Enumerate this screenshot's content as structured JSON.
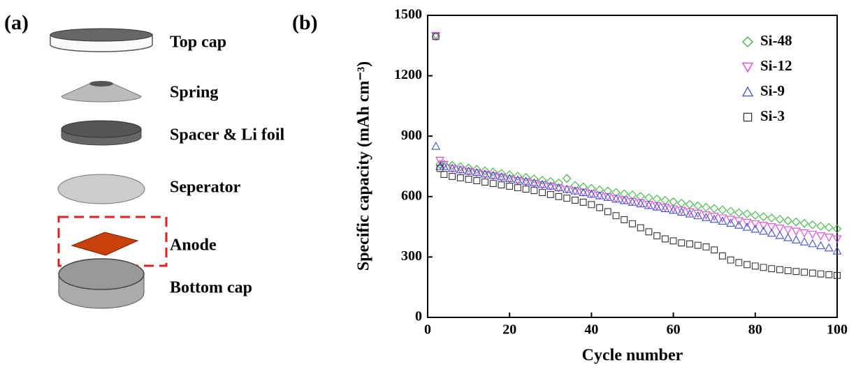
{
  "diagram": {
    "panel_label": "(a)",
    "parts": [
      "Top cap",
      "Spring",
      "Spacer & Li foil",
      "Seperator",
      "Anode",
      "Bottom cap"
    ]
  },
  "chart_data": {
    "type": "scatter",
    "panel_label": "(b)",
    "x_label": "Cycle number",
    "y_label": "Specific capacity (mAh cm⁻³)",
    "x": [
      2,
      3,
      4,
      6,
      8,
      10,
      12,
      14,
      16,
      18,
      20,
      22,
      24,
      26,
      28,
      30,
      32,
      34,
      36,
      38,
      40,
      42,
      44,
      46,
      48,
      50,
      52,
      54,
      56,
      58,
      60,
      62,
      64,
      66,
      68,
      70,
      72,
      74,
      76,
      78,
      80,
      82,
      84,
      86,
      88,
      90,
      92,
      94,
      96,
      98,
      100
    ],
    "series": [
      {
        "name": "Si-48",
        "color": "#3cb43c",
        "marker": "diamond",
        "values": [
          1395,
          760,
          760,
          755,
          748,
          742,
          735,
          728,
          722,
          715,
          708,
          701,
          695,
          688,
          681,
          675,
          668,
          690,
          655,
          648,
          641,
          634,
          628,
          621,
          614,
          608,
          601,
          594,
          588,
          581,
          574,
          567,
          561,
          554,
          547,
          541,
          534,
          527,
          520,
          514,
          507,
          500,
          494,
          487,
          480,
          474,
          467,
          460,
          453,
          447,
          440
        ]
      },
      {
        "name": "Si-12",
        "color": "#e040e0",
        "marker": "triangle-down",
        "values": [
          1400,
          780,
          760,
          740,
          733,
          725,
          718,
          710,
          703,
          696,
          688,
          680,
          673,
          666,
          658,
          651,
          643,
          636,
          628,
          621,
          614,
          606,
          599,
          591,
          584,
          576,
          569,
          561,
          554,
          547,
          539,
          532,
          524,
          517,
          509,
          502,
          494,
          487,
          480,
          472,
          465,
          457,
          450,
          443,
          435,
          428,
          420,
          413,
          405,
          398,
          390
        ]
      },
      {
        "name": "Si-9",
        "color": "#3c50d2",
        "marker": "triangle-up",
        "values": [
          850,
          750,
          750,
          740,
          733,
          726,
          719,
          712,
          705,
          698,
          690,
          683,
          676,
          668,
          660,
          652,
          644,
          636,
          628,
          620,
          612,
          604,
          596,
          588,
          580,
          572,
          564,
          556,
          548,
          540,
          532,
          523,
          514,
          505,
          496,
          487,
          478,
          468,
          458,
          448,
          438,
          428,
          418,
          407,
          396,
          385,
          375,
          366,
          356,
          345,
          330
        ]
      },
      {
        "name": "Si-3",
        "color": "#333333",
        "marker": "square",
        "values": [
          1395,
          740,
          710,
          700,
          693,
          686,
          679,
          672,
          665,
          658,
          651,
          644,
          637,
          630,
          620,
          610,
          600,
          592,
          582,
          572,
          560,
          545,
          525,
          505,
          485,
          465,
          445,
          425,
          405,
          390,
          380,
          370,
          365,
          358,
          350,
          335,
          305,
          285,
          272,
          262,
          255,
          248,
          242,
          237,
          232,
          228,
          224,
          220,
          216,
          212,
          208
        ]
      }
    ],
    "xlim": [
      0,
      100
    ],
    "xticks": [
      0,
      20,
      40,
      60,
      80,
      100
    ],
    "ylim": [
      0,
      1500
    ],
    "yticks": [
      0,
      300,
      600,
      900,
      1200,
      1500
    ],
    "legend": "upper-right",
    "grid": false
  }
}
